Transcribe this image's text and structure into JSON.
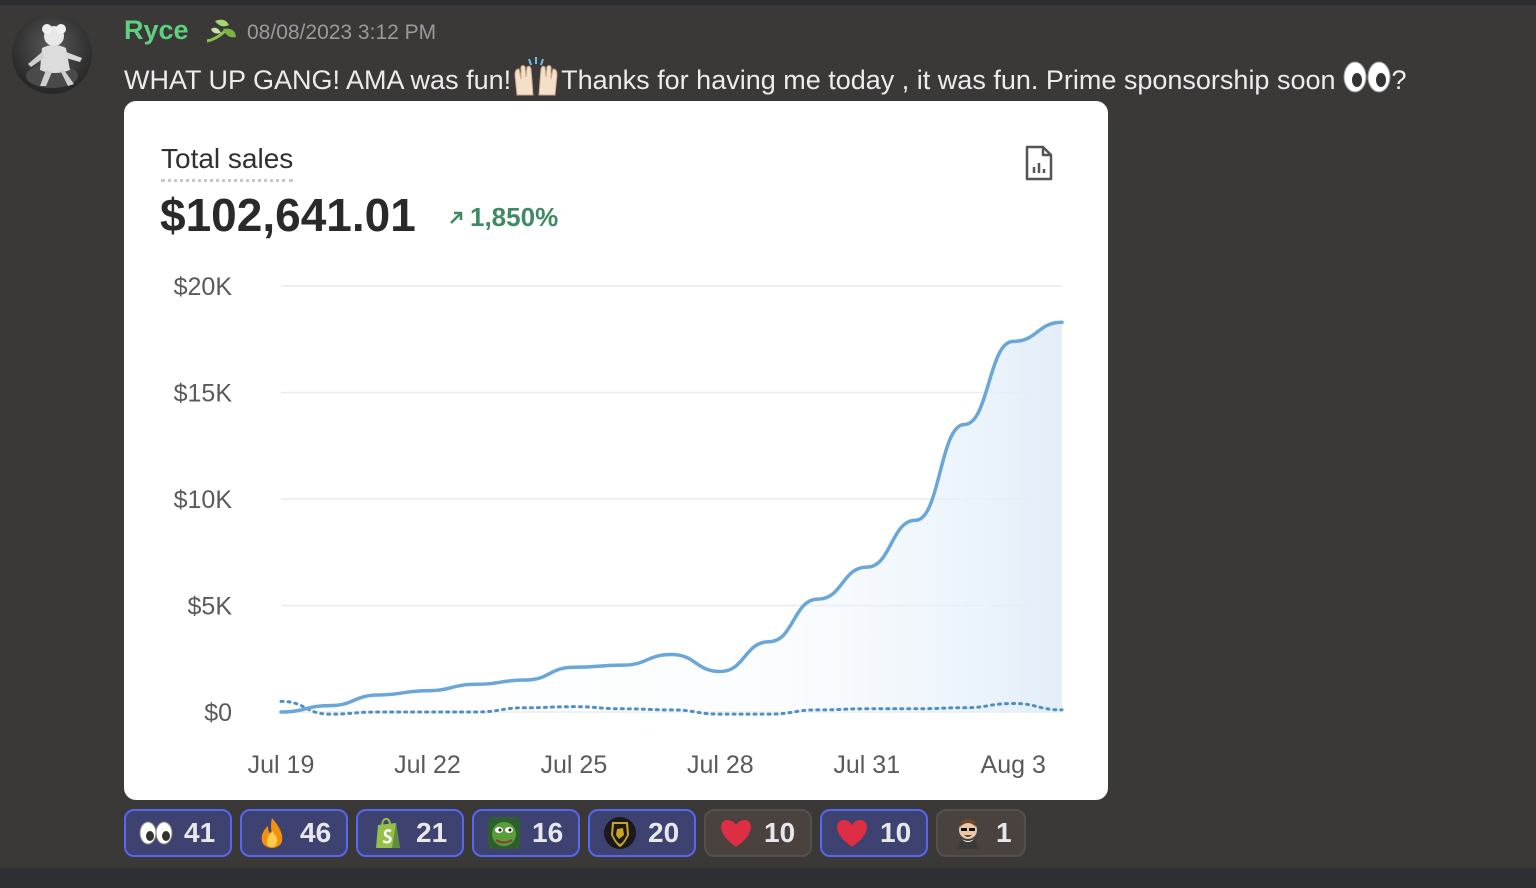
{
  "message": {
    "author": "Ryce",
    "timestamp": "08/08/2023 3:12 PM",
    "text_part1": "WHAT UP GANG! AMA was fun!",
    "text_part2": "Thanks for having me today , it was fun. Prime sponsorship soon",
    "text_part3": "?",
    "emojis": [
      "raised-hands-icon",
      "eyes-icon"
    ]
  },
  "embed": {
    "title": "Total sales",
    "total": "$102,641.01",
    "change": "1,850%",
    "icon": "report-icon",
    "colors": {
      "line": "#6aa7d8",
      "change": "#3f8a62"
    }
  },
  "chart_data": {
    "type": "line",
    "ylim": [
      0,
      20000
    ],
    "yticks": [
      "$0",
      "$5K",
      "$10K",
      "$15K",
      "$20K"
    ],
    "xticks": [
      "Jul 19",
      "Jul 22",
      "Jul 25",
      "Jul 28",
      "Jul 31",
      "Aug 3"
    ],
    "x": [
      "Jul 19",
      "Jul 20",
      "Jul 21",
      "Jul 22",
      "Jul 23",
      "Jul 24",
      "Jul 25",
      "Jul 26",
      "Jul 27",
      "Jul 28",
      "Jul 29",
      "Jul 30",
      "Jul 31",
      "Aug 1",
      "Aug 2",
      "Aug 3",
      "Aug 4"
    ],
    "series": [
      {
        "values": [
          0,
          300,
          800,
          1000,
          1300,
          1500,
          2100,
          2200,
          2700,
          1900,
          3300,
          5300,
          6800,
          9000,
          13500,
          17400,
          18300
        ]
      },
      {
        "values": [
          500,
          -100,
          0,
          0,
          0,
          200,
          250,
          150,
          100,
          -100,
          -100,
          100,
          150,
          150,
          200,
          400,
          100
        ]
      }
    ]
  },
  "reactions": [
    {
      "icon": "eyes-icon",
      "count": "41",
      "active": true
    },
    {
      "icon": "fire-icon",
      "count": "46",
      "active": true
    },
    {
      "icon": "shopify-icon",
      "count": "21",
      "active": true
    },
    {
      "icon": "pepe-icon",
      "count": "16",
      "active": true
    },
    {
      "icon": "lamborghini-icon",
      "count": "20",
      "active": true
    },
    {
      "icon": "heart-icon",
      "count": "10",
      "active": false
    },
    {
      "icon": "heart-icon",
      "count": "10",
      "active": true
    },
    {
      "icon": "shakespeare-icon",
      "count": "1",
      "active": false
    }
  ]
}
